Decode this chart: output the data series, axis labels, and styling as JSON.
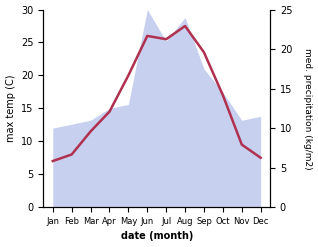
{
  "months": [
    "Jan",
    "Feb",
    "Mar",
    "Apr",
    "May",
    "Jun",
    "Jul",
    "Aug",
    "Sep",
    "Oct",
    "Nov",
    "Dec"
  ],
  "month_x": [
    0,
    1,
    2,
    3,
    4,
    5,
    6,
    7,
    8,
    9,
    10,
    11
  ],
  "temperature": [
    7.0,
    8.0,
    11.5,
    14.5,
    20.0,
    26.0,
    25.5,
    27.5,
    23.5,
    17.0,
    9.5,
    7.5
  ],
  "precipitation": [
    10.0,
    10.5,
    11.0,
    12.5,
    13.0,
    25.0,
    21.0,
    24.0,
    17.5,
    14.5,
    11.0,
    11.5
  ],
  "temp_color": "#b03050",
  "precip_fill_color": "#c8d0f0",
  "temp_ylim": [
    0,
    30
  ],
  "precip_ylim": [
    0,
    25
  ],
  "temp_yticks": [
    0,
    5,
    10,
    15,
    20,
    25,
    30
  ],
  "precip_yticks": [
    0,
    5,
    10,
    15,
    20,
    25
  ],
  "ylabel_left": "max temp (C)",
  "ylabel_right": "med. precipitation (kg/m2)",
  "xlabel": "date (month)",
  "background_color": "#ffffff"
}
